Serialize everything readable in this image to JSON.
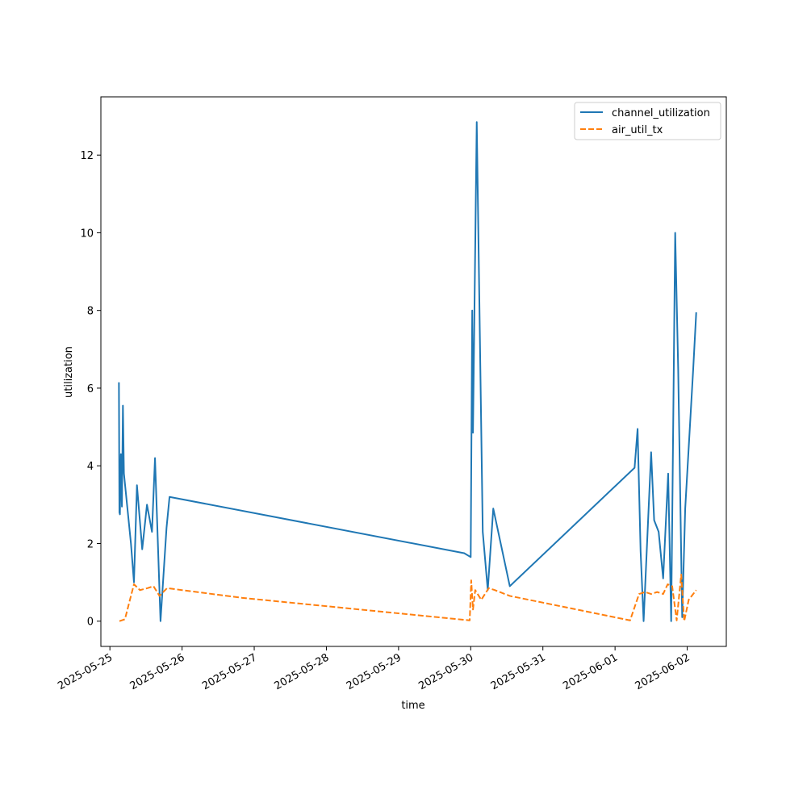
{
  "chart_data": {
    "type": "line",
    "title": "",
    "xlabel": "time",
    "ylabel": "utilization",
    "x_tick_labels": [
      "2025-05-25",
      "2025-05-26",
      "2025-05-27",
      "2025-05-28",
      "2025-05-29",
      "2025-05-30",
      "2025-05-31",
      "2025-06-01",
      "2025-06-02"
    ],
    "y_tick_labels": [
      "0",
      "2",
      "4",
      "6",
      "8",
      "10",
      "12"
    ],
    "xlim": [
      "2025-05-24T21:00",
      "2025-06-02T13:00"
    ],
    "ylim": [
      -0.65,
      13.5
    ],
    "grid": false,
    "legend_position": "top-right",
    "series": [
      {
        "name": "channel_utilization",
        "color": "#1f77b4",
        "line_style": "solid",
        "points": [
          [
            "2025-05-25T03:00",
            6.15
          ],
          [
            "2025-05-25T03:10",
            2.8
          ],
          [
            "2025-05-25T03:20",
            2.75
          ],
          [
            "2025-05-25T03:40",
            4.3
          ],
          [
            "2025-05-25T04:00",
            2.95
          ],
          [
            "2025-05-25T04:20",
            5.55
          ],
          [
            "2025-05-25T04:40",
            3.8
          ],
          [
            "2025-05-25T07:00",
            2.0
          ],
          [
            "2025-05-25T08:00",
            1.0
          ],
          [
            "2025-05-25T09:00",
            3.5
          ],
          [
            "2025-05-25T10:45",
            1.85
          ],
          [
            "2025-05-25T12:20",
            3.0
          ],
          [
            "2025-05-25T14:00",
            2.3
          ],
          [
            "2025-05-25T15:00",
            4.2
          ],
          [
            "2025-05-25T16:50",
            0.0
          ],
          [
            "2025-05-25T18:50",
            2.4
          ],
          [
            "2025-05-25T19:50",
            3.2
          ],
          [
            "2025-05-29T21:50",
            1.75
          ],
          [
            "2025-05-30T00:00",
            1.65
          ],
          [
            "2025-05-30T00:30",
            8.0
          ],
          [
            "2025-05-30T00:45",
            4.85
          ],
          [
            "2025-05-30T02:00",
            12.85
          ],
          [
            "2025-05-30T04:00",
            2.3
          ],
          [
            "2025-05-30T05:40",
            0.8
          ],
          [
            "2025-05-30T07:30",
            2.9
          ],
          [
            "2025-05-30T13:00",
            0.9
          ],
          [
            "2025-06-01T06:30",
            3.95
          ],
          [
            "2025-06-01T07:30",
            4.95
          ],
          [
            "2025-06-01T08:30",
            1.8
          ],
          [
            "2025-06-01T09:30",
            0.0
          ],
          [
            "2025-06-01T12:00",
            4.35
          ],
          [
            "2025-06-01T13:00",
            2.6
          ],
          [
            "2025-06-01T14:30",
            2.3
          ],
          [
            "2025-06-01T16:00",
            1.1
          ],
          [
            "2025-06-01T17:40",
            3.8
          ],
          [
            "2025-06-01T18:40",
            0.0
          ],
          [
            "2025-06-01T20:00",
            10.0
          ],
          [
            "2025-06-01T21:00",
            6.5
          ],
          [
            "2025-06-01T22:20",
            0.1
          ],
          [
            "2025-06-01T23:20",
            2.9
          ],
          [
            "2025-06-02T02:00",
            6.5
          ],
          [
            "2025-06-02T03:00",
            7.95
          ]
        ]
      },
      {
        "name": "air_util_tx",
        "color": "#ff7f0e",
        "line_style": "dashed",
        "points": [
          [
            "2025-05-25T03:10",
            0.0
          ],
          [
            "2025-05-25T05:00",
            0.05
          ],
          [
            "2025-05-25T08:00",
            0.95
          ],
          [
            "2025-05-25T10:00",
            0.8
          ],
          [
            "2025-05-25T12:30",
            0.85
          ],
          [
            "2025-05-25T14:30",
            0.9
          ],
          [
            "2025-05-25T16:30",
            0.65
          ],
          [
            "2025-05-25T19:00",
            0.85
          ],
          [
            "2025-05-26T20:00",
            0.6
          ],
          [
            "2025-05-29T23:40",
            0.02
          ],
          [
            "2025-05-30T00:10",
            1.05
          ],
          [
            "2025-05-30T00:45",
            0.3
          ],
          [
            "2025-05-30T01:30",
            0.8
          ],
          [
            "2025-05-30T03:30",
            0.55
          ],
          [
            "2025-05-30T06:00",
            0.85
          ],
          [
            "2025-05-30T08:00",
            0.8
          ],
          [
            "2025-05-30T13:00",
            0.65
          ],
          [
            "2025-06-01T05:00",
            0.02
          ],
          [
            "2025-06-01T08:00",
            0.7
          ],
          [
            "2025-06-01T10:00",
            0.75
          ],
          [
            "2025-06-01T12:00",
            0.7
          ],
          [
            "2025-06-01T14:00",
            0.75
          ],
          [
            "2025-06-01T16:00",
            0.7
          ],
          [
            "2025-06-01T17:30",
            0.95
          ],
          [
            "2025-06-01T19:00",
            0.9
          ],
          [
            "2025-06-01T20:30",
            0.02
          ],
          [
            "2025-06-01T22:00",
            1.2
          ],
          [
            "2025-06-01T23:00",
            0.0
          ],
          [
            "2025-06-02T00:30",
            0.55
          ],
          [
            "2025-06-02T03:00",
            0.8
          ]
        ]
      }
    ]
  }
}
